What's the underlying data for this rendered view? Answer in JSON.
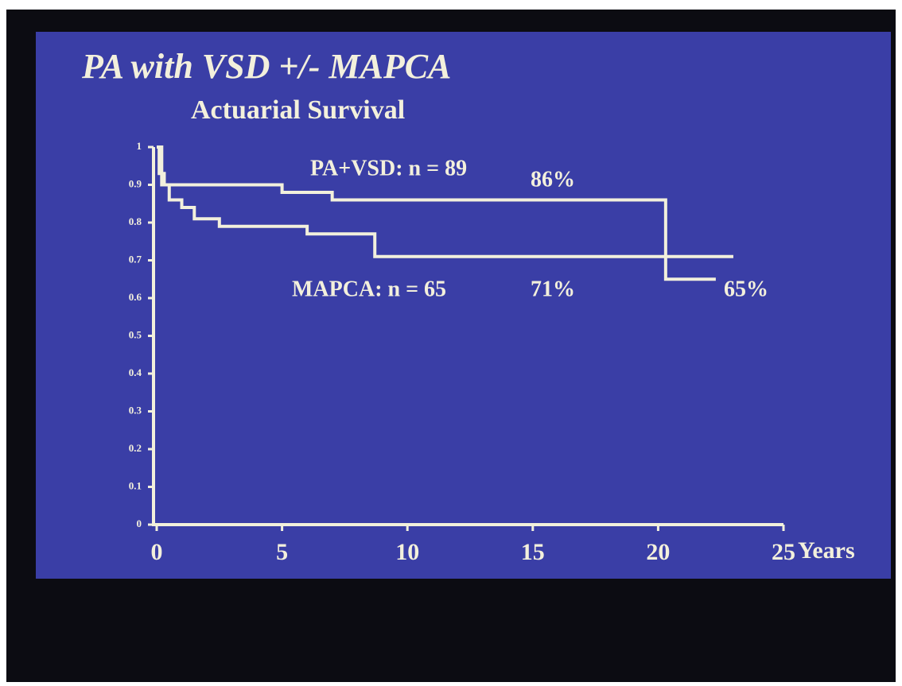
{
  "chart_data": {
    "type": "line",
    "step": "post",
    "title": "PA with VSD +/- MAPCA",
    "subtitle": "Actuarial Survival",
    "x_label": "Years",
    "xlim": [
      0,
      25
    ],
    "xticks": [
      0,
      5,
      10,
      15,
      20,
      25
    ],
    "ylim": [
      0,
      1
    ],
    "yticks": [
      0,
      0.1,
      0.2,
      0.3,
      0.4,
      0.5,
      0.6,
      0.7,
      0.8,
      0.9,
      1
    ],
    "series": [
      {
        "name": "PA+VSD: n = 89",
        "color": "#f2f0dc",
        "x": [
          0,
          0.1,
          0.3,
          5,
          7,
          20.3,
          22.3
        ],
        "values": [
          1,
          0.93,
          0.9,
          0.88,
          0.86,
          0.65,
          0.65
        ]
      },
      {
        "name": "MAPCA: n = 65",
        "color": "#f2f0dc",
        "x": [
          0,
          0.2,
          0.5,
          1,
          1.5,
          2.5,
          6,
          8.7,
          23
        ],
        "values": [
          1,
          0.9,
          0.86,
          0.84,
          0.81,
          0.79,
          0.77,
          0.71,
          0.71
        ]
      }
    ],
    "annotations": [
      "86%",
      "71%",
      "65%"
    ]
  }
}
